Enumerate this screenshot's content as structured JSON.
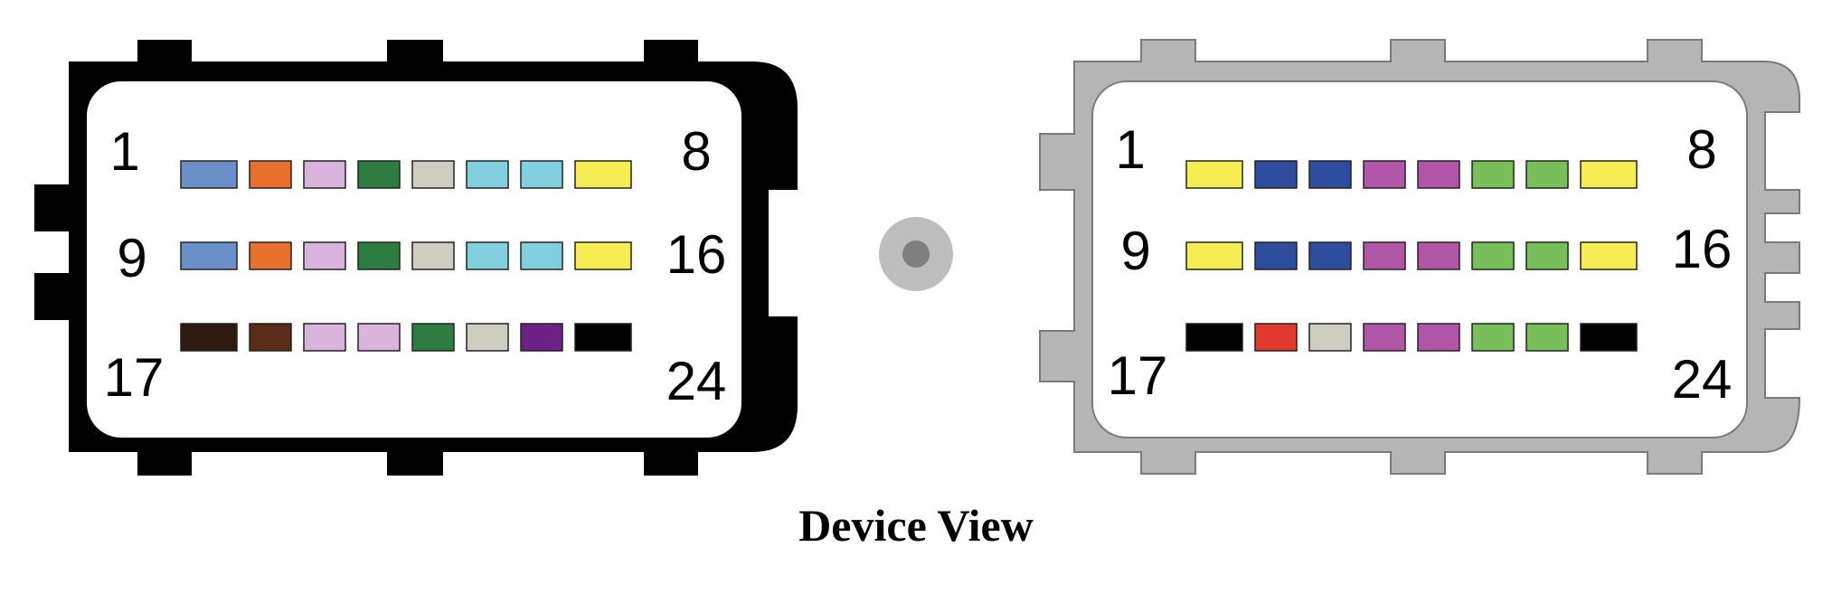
{
  "caption": "Device View",
  "connector_left": {
    "pin_labels": {
      "row1_start": "1",
      "row1_end": "8",
      "row2_start": "9",
      "row2_end": "16",
      "row3_start": "17",
      "row3_end": "24"
    },
    "rows": [
      [
        "#6b8fc9",
        "#e8702f",
        "#d8b4dc",
        "#2d7d42",
        "#cfcdc0",
        "#82cfdf",
        "#82cfdf",
        "#f5ee52"
      ],
      [
        "#6b8fc9",
        "#e8702f",
        "#d8b4dc",
        "#2d7d42",
        "#cfcdc0",
        "#82cfdf",
        "#82cfdf",
        "#f5ee52"
      ],
      [
        "#2e1a10",
        "#5a2c17",
        "#d8b4dc",
        "#d8b4dc",
        "#2d7d42",
        "#cfcdc0",
        "#6c2285",
        "#000000"
      ]
    ]
  },
  "connector_right": {
    "pin_labels": {
      "row1_start": "1",
      "row1_end": "8",
      "row2_start": "9",
      "row2_end": "16",
      "row3_start": "17",
      "row3_end": "24"
    },
    "rows": [
      [
        "#f5ee52",
        "#2e4d9e",
        "#2e4d9e",
        "#b055a8",
        "#b055a8",
        "#77bf58",
        "#77bf58",
        "#f5ee52"
      ],
      [
        "#f5ee52",
        "#2e4d9e",
        "#2e4d9e",
        "#b055a8",
        "#b055a8",
        "#77bf58",
        "#77bf58",
        "#f5ee52"
      ],
      [
        "#000000",
        "#e1382c",
        "#cfcdc0",
        "#b055a8",
        "#b055a8",
        "#77bf58",
        "#77bf58",
        "#000000"
      ]
    ]
  },
  "colors": {
    "housing_left": "#000000",
    "housing_right": "#b5b5b5",
    "housing_right_outline": "#7a7a7a",
    "center_dot_outer": "#bdbdbd",
    "center_dot_inner": "#7f7f7f"
  }
}
